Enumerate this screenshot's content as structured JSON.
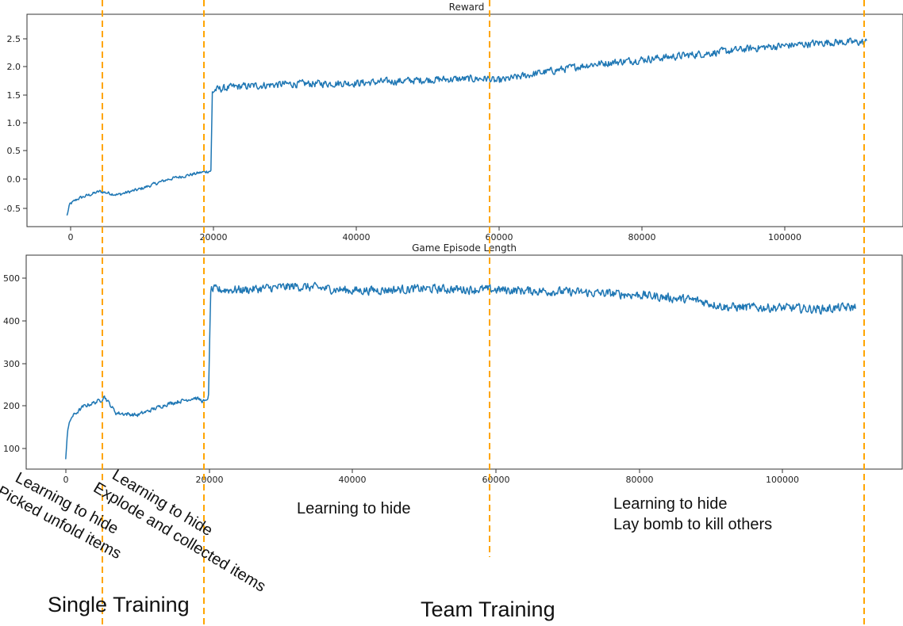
{
  "chart_data": [
    {
      "type": "line",
      "title": "Reward",
      "xlabel": "",
      "ylabel": "",
      "xlim": [
        -5500,
        115000
      ],
      "ylim": [
        -0.85,
        2.95
      ],
      "xticks": [
        0,
        20000,
        40000,
        60000,
        80000,
        100000
      ],
      "xtick_labels": [
        "0",
        "20000",
        "40000",
        "60000",
        "80000",
        "100000"
      ],
      "yticks": [
        -0.5,
        0.0,
        0.5,
        1.0,
        1.5,
        2.0,
        2.5
      ],
      "ytick_labels": [
        "-0.5",
        "0.0",
        "0.5",
        "1.0",
        "1.5",
        "2.0",
        "2.5"
      ],
      "series": [
        {
          "name": "reward",
          "color": "#1f77b4",
          "noise": 0.09,
          "x": [
            0,
            400,
            1500,
            4500,
            7000,
            10000,
            14000,
            18500,
            19800,
            20000,
            20400,
            23000,
            30000,
            40000,
            50000,
            58000,
            59000,
            65000,
            72000,
            80000,
            88000,
            95000,
            100000,
            105000,
            110000
          ],
          "y": [
            -0.65,
            -0.45,
            -0.35,
            -0.22,
            -0.28,
            -0.18,
            0.0,
            0.12,
            0.15,
            1.55,
            1.6,
            1.65,
            1.7,
            1.72,
            1.78,
            1.8,
            1.75,
            1.9,
            2.05,
            2.15,
            2.25,
            2.35,
            2.4,
            2.45,
            2.45
          ]
        }
      ]
    },
    {
      "type": "line",
      "title": "Game Episode Length",
      "xlabel": "",
      "ylabel": "",
      "xlim": [
        -5500,
        116500
      ],
      "ylim": [
        55,
        550
      ],
      "xticks": [
        0,
        20000,
        40000,
        60000,
        80000,
        100000
      ],
      "xtick_labels": [
        "0",
        "20000",
        "40000",
        "60000",
        "80000",
        "100000"
      ],
      "yticks": [
        100,
        200,
        300,
        400,
        500
      ],
      "ytick_labels": [
        "100",
        "200",
        "300",
        "400",
        "500"
      ],
      "series": [
        {
          "name": "episode_length",
          "color": "#1f77b4",
          "noise": 14,
          "x": [
            0,
            250,
            800,
            2500,
            5000,
            5300,
            7000,
            10000,
            14000,
            18000,
            19500,
            19900,
            20200,
            25000,
            32000,
            40000,
            50000,
            60000,
            70000,
            80000,
            88000,
            92000,
            100000,
            105000,
            110000
          ],
          "y": [
            78,
            145,
            175,
            200,
            215,
            225,
            185,
            180,
            205,
            220,
            210,
            225,
            470,
            470,
            478,
            468,
            472,
            470,
            465,
            458,
            445,
            430,
            428,
            425,
            430
          ]
        }
      ]
    }
  ],
  "stage_markers_x": [
    5000,
    19300,
    59000,
    111000
  ],
  "marker_color": "#ffa500",
  "annotations": {
    "stage1_line1": "Learning to hide",
    "stage1_line2": "Picked unfold items",
    "stage2_line1": "Learning to hide",
    "stage2_line2": "Explode and collected items",
    "stage3_line1": "Learning to hide",
    "stage4_line1": "Learning to hide",
    "stage4_line2": "Lay bomb to kill others",
    "single_training": "Single Training",
    "team_training": "Team Training"
  }
}
